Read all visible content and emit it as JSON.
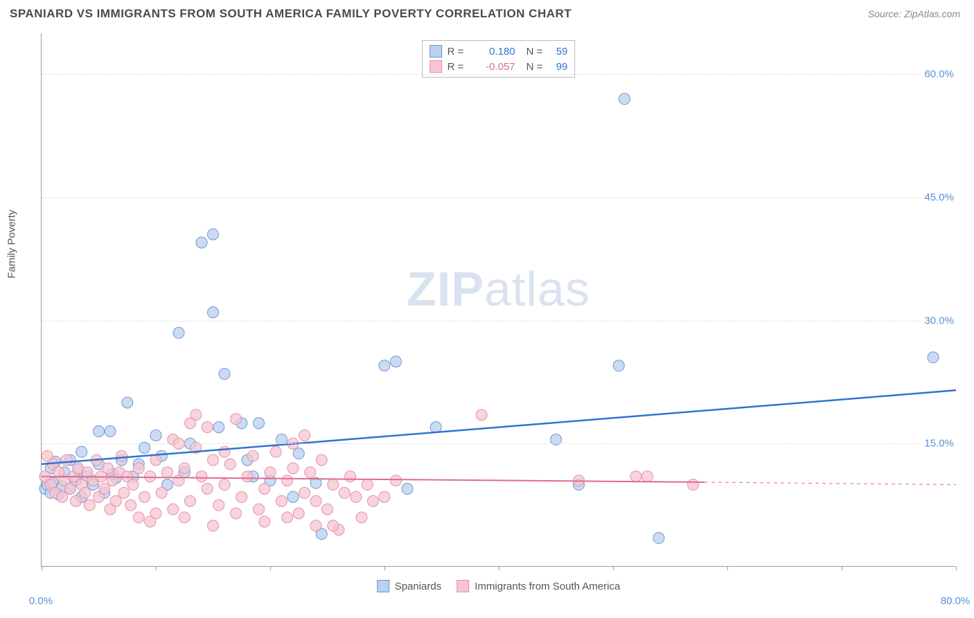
{
  "header": {
    "title": "SPANIARD VS IMMIGRANTS FROM SOUTH AMERICA FAMILY POVERTY CORRELATION CHART",
    "source": "Source: ZipAtlas.com"
  },
  "watermark": {
    "part1": "ZIP",
    "part2": "atlas"
  },
  "chart": {
    "type": "scatter",
    "y_axis_label": "Family Poverty",
    "xlim": [
      0,
      80
    ],
    "ylim": [
      0,
      65
    ],
    "x_ticks": [
      0,
      10,
      20,
      30,
      40,
      50,
      60,
      70,
      80
    ],
    "x_tick_labels": {
      "0": "0.0%",
      "80": "80.0%"
    },
    "y_ticks": [
      15,
      30,
      45,
      60
    ],
    "y_tick_labels": [
      "15.0%",
      "30.0%",
      "45.0%",
      "60.0%"
    ],
    "background_color": "#ffffff",
    "grid_color": "#dddddd",
    "axis_color": "#999999",
    "tick_label_color": "#5b8fd6",
    "tick_label_fontsize": 15,
    "axis_label_fontsize": 15,
    "marker_radius": 8,
    "marker_stroke_width": 1
  },
  "series": {
    "spaniards": {
      "label": "Spaniards",
      "fill_color": "#b9d0ee",
      "stroke_color": "#6c96d4",
      "line_color": "#2e74d0",
      "line_width": 2.5,
      "r_value": "0.180",
      "r_color": "#2e74d0",
      "n_value": "59",
      "n_color": "#2e74d0",
      "trend": {
        "x1": 0,
        "y1": 12.5,
        "x2": 80,
        "y2": 21.5
      },
      "points": [
        [
          0.3,
          9.5
        ],
        [
          0.5,
          10.0
        ],
        [
          0.8,
          9.0
        ],
        [
          1.0,
          10.2
        ],
        [
          1.5,
          8.8
        ],
        [
          1.8,
          9.8
        ],
        [
          0.8,
          12.0
        ],
        [
          1.2,
          12.8
        ],
        [
          2.0,
          11.5
        ],
        [
          2.5,
          9.5
        ],
        [
          2.5,
          13.0
        ],
        [
          3.0,
          10.5
        ],
        [
          3.2,
          11.8
        ],
        [
          3.5,
          8.5
        ],
        [
          4.0,
          11.0
        ],
        [
          4.5,
          10.0
        ],
        [
          5.0,
          12.5
        ],
        [
          5.5,
          9.0
        ],
        [
          5.0,
          16.5
        ],
        [
          6.0,
          16.5
        ],
        [
          6.5,
          10.8
        ],
        [
          7.0,
          13.0
        ],
        [
          7.5,
          20.0
        ],
        [
          8.0,
          11.0
        ],
        [
          8.5,
          12.5
        ],
        [
          6.2,
          11.3
        ],
        [
          9.0,
          14.5
        ],
        [
          10.0,
          16.0
        ],
        [
          10.5,
          13.5
        ],
        [
          11.0,
          10.0
        ],
        [
          3.5,
          14.0
        ],
        [
          12.5,
          11.5
        ],
        [
          12.0,
          28.5
        ],
        [
          13.0,
          15.0
        ],
        [
          14.0,
          39.5
        ],
        [
          15.0,
          40.5
        ],
        [
          15.5,
          17.0
        ],
        [
          16.0,
          23.5
        ],
        [
          17.5,
          17.5
        ],
        [
          18.0,
          13.0
        ],
        [
          18.5,
          11.0
        ],
        [
          19.0,
          17.5
        ],
        [
          15.0,
          31.0
        ],
        [
          20.0,
          10.5
        ],
        [
          21.0,
          15.5
        ],
        [
          22.0,
          8.5
        ],
        [
          22.5,
          13.8
        ],
        [
          24.0,
          10.2
        ],
        [
          24.5,
          4.0
        ],
        [
          30.0,
          24.5
        ],
        [
          31.0,
          25.0
        ],
        [
          32.0,
          9.5
        ],
        [
          34.5,
          17.0
        ],
        [
          45.0,
          15.5
        ],
        [
          47.0,
          10.0
        ],
        [
          50.5,
          24.5
        ],
        [
          54.0,
          3.5
        ],
        [
          51.0,
          57.0
        ],
        [
          78.0,
          25.5
        ]
      ]
    },
    "immigrants": {
      "label": "Immigrants from South America",
      "fill_color": "#f5c5d2",
      "stroke_color": "#e691a8",
      "line_color": "#e06b8f",
      "line_width": 2,
      "r_value": "-0.057",
      "r_color": "#e06b8f",
      "n_value": "99",
      "n_color": "#2e74d0",
      "trend": {
        "x1": 0,
        "y1": 11.0,
        "x2": 58,
        "y2": 10.3
      },
      "trend_dash": {
        "x1": 58,
        "y1": 10.3,
        "x2": 80,
        "y2": 10.0
      },
      "points": [
        [
          0.3,
          11.0
        ],
        [
          0.5,
          13.5
        ],
        [
          0.8,
          10.0
        ],
        [
          1.0,
          12.5
        ],
        [
          1.2,
          9.0
        ],
        [
          1.5,
          11.5
        ],
        [
          1.8,
          8.5
        ],
        [
          2.0,
          10.5
        ],
        [
          2.2,
          13.0
        ],
        [
          2.5,
          9.5
        ],
        [
          2.8,
          11.0
        ],
        [
          3.0,
          8.0
        ],
        [
          3.2,
          12.0
        ],
        [
          3.5,
          10.0
        ],
        [
          3.8,
          9.0
        ],
        [
          4.0,
          11.5
        ],
        [
          4.2,
          7.5
        ],
        [
          4.5,
          10.5
        ],
        [
          4.8,
          13.0
        ],
        [
          5.0,
          8.5
        ],
        [
          5.2,
          11.0
        ],
        [
          5.5,
          9.5
        ],
        [
          5.8,
          12.0
        ],
        [
          6.0,
          7.0
        ],
        [
          6.2,
          10.5
        ],
        [
          6.5,
          8.0
        ],
        [
          6.8,
          11.5
        ],
        [
          7.0,
          13.5
        ],
        [
          7.2,
          9.0
        ],
        [
          7.5,
          11.0
        ],
        [
          7.8,
          7.5
        ],
        [
          8.0,
          10.0
        ],
        [
          8.5,
          12.0
        ],
        [
          9.0,
          8.5
        ],
        [
          9.5,
          11.0
        ],
        [
          10.0,
          13.0
        ],
        [
          10.5,
          9.0
        ],
        [
          11.0,
          11.5
        ],
        [
          11.5,
          7.0
        ],
        [
          12.0,
          10.5
        ],
        [
          12.5,
          12.0
        ],
        [
          13.0,
          8.0
        ],
        [
          13.5,
          18.5
        ],
        [
          14.0,
          11.0
        ],
        [
          14.5,
          9.5
        ],
        [
          15.0,
          13.0
        ],
        [
          15.5,
          7.5
        ],
        [
          16.0,
          10.0
        ],
        [
          16.5,
          12.5
        ],
        [
          17.0,
          18.0
        ],
        [
          17.5,
          8.5
        ],
        [
          18.0,
          11.0
        ],
        [
          18.5,
          13.5
        ],
        [
          19.0,
          7.0
        ],
        [
          19.5,
          9.5
        ],
        [
          20.0,
          11.5
        ],
        [
          20.5,
          14.0
        ],
        [
          21.0,
          8.0
        ],
        [
          21.5,
          10.5
        ],
        [
          22.0,
          12.0
        ],
        [
          22.5,
          6.5
        ],
        [
          23.0,
          9.0
        ],
        [
          23.5,
          11.5
        ],
        [
          24.0,
          8.0
        ],
        [
          24.5,
          13.0
        ],
        [
          25.0,
          7.0
        ],
        [
          25.5,
          10.0
        ],
        [
          26.0,
          4.5
        ],
        [
          26.5,
          9.0
        ],
        [
          27.0,
          11.0
        ],
        [
          27.5,
          8.5
        ],
        [
          28.0,
          6.0
        ],
        [
          28.5,
          10.0
        ],
        [
          29.0,
          8.0
        ],
        [
          22.0,
          15.0
        ],
        [
          23.0,
          16.0
        ],
        [
          11.5,
          15.5
        ],
        [
          12.0,
          15.0
        ],
        [
          13.5,
          14.5
        ],
        [
          14.5,
          17.0
        ],
        [
          16.0,
          14.0
        ],
        [
          8.5,
          6.0
        ],
        [
          9.5,
          5.5
        ],
        [
          10.0,
          6.5
        ],
        [
          12.5,
          6.0
        ],
        [
          15.0,
          5.0
        ],
        [
          17.0,
          6.5
        ],
        [
          19.5,
          5.5
        ],
        [
          21.5,
          6.0
        ],
        [
          24.0,
          5.0
        ],
        [
          30.0,
          8.5
        ],
        [
          31.0,
          10.5
        ],
        [
          38.5,
          18.5
        ],
        [
          47.0,
          10.5
        ],
        [
          52.0,
          11.0
        ],
        [
          53.0,
          11.0
        ],
        [
          57.0,
          10.0
        ],
        [
          25.5,
          5.0
        ],
        [
          13.0,
          17.5
        ]
      ]
    }
  },
  "legend_top": {
    "r_label": "R =",
    "n_label": "N ="
  }
}
